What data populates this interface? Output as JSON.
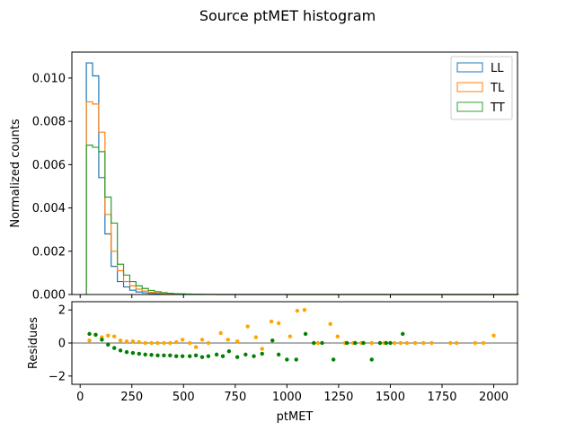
{
  "chart_data": {
    "type": "histogram",
    "title": "Source ptMET histogram",
    "top_panel": {
      "ylabel": "Normalized counts",
      "ylim": [
        0,
        0.0112
      ],
      "yticks": [
        0,
        0.002,
        0.004,
        0.006,
        0.008,
        0.01
      ],
      "ytick_labels": [
        "0.000",
        "0.002",
        "0.004",
        "0.006",
        "0.008",
        "0.010"
      ],
      "xlim": [
        -40,
        2115
      ],
      "legend_position": "upper right",
      "bins": [
        30,
        60,
        90,
        120,
        150,
        180,
        210,
        240,
        270,
        300,
        330,
        360,
        390,
        420,
        450,
        480,
        510,
        540,
        570,
        600,
        630,
        660,
        1000,
        1500,
        2000,
        2120
      ],
      "series": [
        {
          "name": "LL",
          "color": "#1f77b4",
          "values": [
            0.0107,
            0.0101,
            0.0054,
            0.0028,
            0.0013,
            0.0006,
            0.00035,
            0.0002,
            0.00012,
            8e-05,
            5e-05,
            3e-05,
            2e-05,
            1.5e-05,
            1e-05,
            8e-06,
            6e-06,
            5e-06,
            4e-06,
            3e-06,
            2e-06,
            1e-06,
            5e-07,
            3e-07,
            2e-07
          ]
        },
        {
          "name": "TL",
          "color": "#ff7f0e",
          "values": [
            0.0089,
            0.0088,
            0.0075,
            0.0037,
            0.002,
            0.0011,
            0.0006,
            0.0004,
            0.00025,
            0.00016,
            0.0001,
            7e-05,
            5e-05,
            3e-05,
            2e-05,
            1.5e-05,
            1e-05,
            8e-06,
            6e-06,
            4e-06,
            3e-06,
            2e-06,
            1e-06,
            5e-07,
            3e-07
          ]
        },
        {
          "name": "TT",
          "color": "#2ca02c",
          "values": [
            0.0069,
            0.0068,
            0.0066,
            0.0045,
            0.0033,
            0.0014,
            0.0009,
            0.0006,
            0.0004,
            0.00028,
            0.00019,
            0.00013,
            9e-05,
            6e-05,
            4e-05,
            3e-05,
            2e-05,
            1.5e-05,
            1e-05,
            8e-06,
            5e-06,
            3e-06,
            2e-06,
            1e-06,
            5e-07
          ]
        }
      ]
    },
    "bottom_panel": {
      "ylabel": "Residues",
      "xlabel": "ptMET",
      "ylim": [
        -2.5,
        2.5
      ],
      "yticks": [
        -2,
        0,
        2
      ],
      "ytick_labels": [
        "−2",
        "0",
        "2"
      ],
      "xlim": [
        -40,
        2115
      ],
      "xticks": [
        0,
        250,
        500,
        750,
        1000,
        1250,
        1500,
        1750,
        2000
      ],
      "xtick_labels": [
        "0",
        "250",
        "500",
        "750",
        "1000",
        "1250",
        "1500",
        "1750",
        "2000"
      ],
      "zero_line": true,
      "series": [
        {
          "name": "orange",
          "color": "#ffa500",
          "points": [
            [
              45,
              0.15
            ],
            [
              75,
              0.5
            ],
            [
              105,
              0.35
            ],
            [
              135,
              0.45
            ],
            [
              165,
              0.4
            ],
            [
              195,
              0.15
            ],
            [
              225,
              0.1
            ],
            [
              255,
              0.1
            ],
            [
              285,
              0.05
            ],
            [
              315,
              0
            ],
            [
              345,
              0
            ],
            [
              375,
              0
            ],
            [
              405,
              0
            ],
            [
              435,
              0
            ],
            [
              465,
              0.05
            ],
            [
              495,
              0.2
            ],
            [
              530,
              0
            ],
            [
              560,
              -0.25
            ],
            [
              590,
              0.2
            ],
            [
              620,
              0
            ],
            [
              680,
              0.6
            ],
            [
              715,
              0.2
            ],
            [
              760,
              0.1
            ],
            [
              810,
              1
            ],
            [
              850,
              0.35
            ],
            [
              880,
              -0.35
            ],
            [
              925,
              1.3
            ],
            [
              960,
              1.2
            ],
            [
              1015,
              0.4
            ],
            [
              1050,
              1.95
            ],
            [
              1085,
              2
            ],
            [
              1150,
              0
            ],
            [
              1210,
              1.15
            ],
            [
              1245,
              0.4
            ],
            [
              1280,
              0
            ],
            [
              1320,
              0
            ],
            [
              1360,
              0
            ],
            [
              1410,
              0
            ],
            [
              1470,
              0
            ],
            [
              1520,
              0
            ],
            [
              1550,
              0
            ],
            [
              1580,
              0
            ],
            [
              1620,
              0
            ],
            [
              1660,
              0
            ],
            [
              1700,
              0
            ],
            [
              1790,
              0
            ],
            [
              1820,
              0
            ],
            [
              1910,
              0
            ],
            [
              1950,
              0
            ],
            [
              2000,
              0.45
            ]
          ]
        },
        {
          "name": "green",
          "color": "#008000",
          "points": [
            [
              45,
              0.55
            ],
            [
              75,
              0.5
            ],
            [
              105,
              0.2
            ],
            [
              135,
              -0.1
            ],
            [
              165,
              -0.3
            ],
            [
              195,
              -0.45
            ],
            [
              225,
              -0.55
            ],
            [
              255,
              -0.6
            ],
            [
              285,
              -0.65
            ],
            [
              315,
              -0.7
            ],
            [
              345,
              -0.72
            ],
            [
              375,
              -0.75
            ],
            [
              405,
              -0.75
            ],
            [
              435,
              -0.75
            ],
            [
              465,
              -0.8
            ],
            [
              495,
              -0.8
            ],
            [
              530,
              -0.8
            ],
            [
              560,
              -0.75
            ],
            [
              590,
              -0.85
            ],
            [
              620,
              -0.8
            ],
            [
              660,
              -0.7
            ],
            [
              690,
              -0.8
            ],
            [
              720,
              -0.5
            ],
            [
              760,
              -0.85
            ],
            [
              800,
              -0.7
            ],
            [
              840,
              -0.8
            ],
            [
              880,
              -0.65
            ],
            [
              930,
              0.15
            ],
            [
              960,
              -0.7
            ],
            [
              1000,
              -1
            ],
            [
              1045,
              -1
            ],
            [
              1090,
              0.55
            ],
            [
              1130,
              0
            ],
            [
              1170,
              0
            ],
            [
              1225,
              -1
            ],
            [
              1290,
              0
            ],
            [
              1330,
              0
            ],
            [
              1370,
              0
            ],
            [
              1410,
              -1
            ],
            [
              1450,
              0
            ],
            [
              1480,
              0
            ],
            [
              1500,
              0
            ],
            [
              1560,
              0.55
            ]
          ]
        }
      ]
    }
  },
  "legend": [
    {
      "label": "LL",
      "color": "#1f77b4"
    },
    {
      "label": "TL",
      "color": "#ff7f0e"
    },
    {
      "label": "TT",
      "color": "#2ca02c"
    }
  ]
}
